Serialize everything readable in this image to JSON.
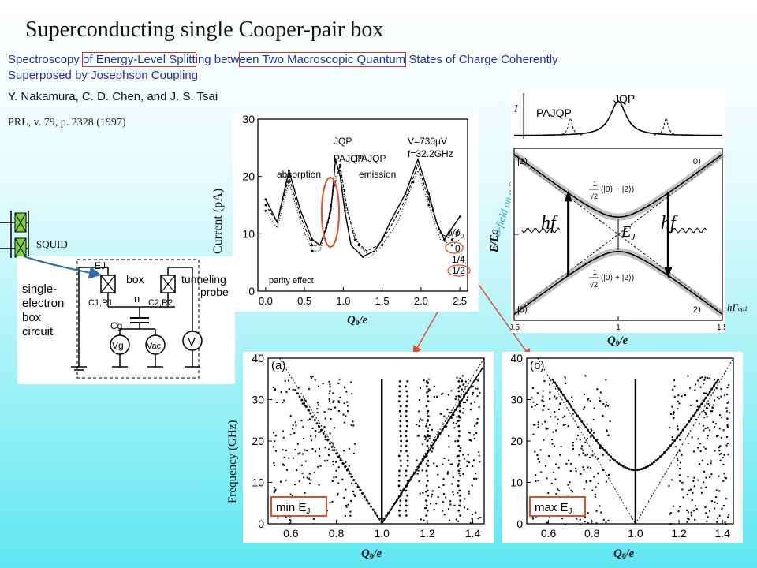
{
  "slide": {
    "title": "Superconducting single Cooper-pair box",
    "subtitle": {
      "p1": "Spectroscopy ",
      "p2": "of Energy-Level Splitt",
      "p3": "ing betw",
      "p4": "een Two Macroscopic Quantum",
      "p5": " States of Charge Coherently",
      "line2": "Superposed by Josephson Coupling"
    },
    "authors": "Y. Nakamura, C. D. Chen, and J. S. Tsai",
    "reference": "PRL, v. 79, p. 2328 (1997)"
  },
  "circuit": {
    "squid_label": "SQUID",
    "ej_label": "EJ",
    "box_label": "box",
    "n_label": "n",
    "c1_label": "C1,R1",
    "c2_label": "C2,R2",
    "cg_label": "Cg",
    "vg_label": "Vg",
    "vac_label": "Vac",
    "v_label": "V",
    "tunneling_label": "tunneling",
    "probe_label": "probe",
    "circuit_desc": [
      "single-",
      "electron",
      "box",
      "circuit"
    ]
  },
  "current_plot": {
    "ylabel": "Current (pA)",
    "xlabel": "Q",
    "xlabel_sub": "0",
    "xlabel_tail": "/e",
    "conditions": [
      "V=730µV",
      "f=32.2GHz"
    ],
    "annotations": {
      "pajqp_left": "PAJQP",
      "absorption": "absorption",
      "jqp": "JQP",
      "pajqp_right": "PAJQP",
      "emission": "emission",
      "parity": "parity effect",
      "phi": "ϕ/ϕ",
      "phi_sub": "0",
      "phi0": "0",
      "phi1": "1/4",
      "phi2": "1/2"
    }
  },
  "energy_plot": {
    "ylabel": "E/E",
    "ylabel_sub": "C",
    "current_axis": "I",
    "jqp": "JQP",
    "pajqp": "PAJQP",
    "bfield": "B-field on a SQUID",
    "state2_left": "|2⟩",
    "state0_right": "|0⟩",
    "state0_left": "|0⟩",
    "state2_right": "|2⟩",
    "hf_left": "hf",
    "hf_right": "hf",
    "ej": "E",
    "ej_sub": "J",
    "minus_label": "(|0⟩ − |2⟩)",
    "plus_label": "(|0⟩ + |2⟩)",
    "frac_num": "1",
    "frac_den": "√2",
    "hbar_gamma": "ħΓ",
    "hbar_sub": "qp1",
    "xlabel": "Q",
    "xlabel_sub": "0",
    "xlabel_tail": "/e"
  },
  "freq_plots": {
    "ylabel": "Frequency (GHz)",
    "xlabel": "Q",
    "xlabel_sub": "0",
    "xlabel_tail": "/e",
    "panel_a": {
      "tag": "(a)",
      "box": "min E",
      "box_sub": "J"
    },
    "panel_b": {
      "tag": "(b)",
      "box": "max E",
      "box_sub": "J"
    }
  },
  "chart_data": [
    {
      "type": "line",
      "ylabel": "Current (pA)",
      "xlabel": "Q0/e",
      "ylim": [
        0,
        30
      ],
      "xlim": [
        -0.1,
        2.6
      ],
      "yticks": [
        0,
        10,
        20,
        30
      ],
      "xticks": [
        0.0,
        0.5,
        1.0,
        1.5,
        2.0,
        2.5
      ],
      "series": [
        {
          "name": "0",
          "x": [
            0.0,
            0.15,
            0.3,
            0.45,
            0.6,
            0.7,
            0.78,
            0.84,
            0.9,
            0.96,
            1.02,
            1.1,
            1.25,
            1.4,
            1.5,
            1.6,
            1.8,
            1.96,
            2.1,
            2.2,
            2.3,
            2.4,
            2.5
          ],
          "y": [
            16,
            12,
            21,
            14,
            9,
            8,
            11,
            14,
            23,
            20,
            14,
            8,
            6,
            7,
            9,
            12,
            17,
            23,
            17,
            12,
            9,
            11,
            13
          ]
        },
        {
          "name": "1/4",
          "x": [
            0.0,
            0.15,
            0.3,
            0.45,
            0.6,
            0.7,
            0.8,
            0.88,
            0.96,
            1.04,
            1.15,
            1.3,
            1.45,
            1.6,
            1.8,
            1.96,
            2.1,
            2.25,
            2.4,
            2.5
          ],
          "y": [
            15,
            12,
            20,
            13,
            8,
            8,
            12,
            18,
            22,
            15,
            9,
            7,
            8,
            11,
            16,
            22,
            16,
            10,
            9,
            10
          ]
        },
        {
          "name": "1/2",
          "x": [
            0.0,
            0.15,
            0.3,
            0.45,
            0.6,
            0.7,
            0.8,
            0.9,
            0.96,
            1.04,
            1.2,
            1.35,
            1.5,
            1.7,
            1.9,
            1.96,
            2.1,
            2.25,
            2.4,
            2.5
          ],
          "y": [
            14,
            11,
            19,
            12,
            7,
            7,
            12,
            20,
            21,
            14,
            8,
            6,
            8,
            12,
            19,
            21,
            15,
            9,
            8,
            9
          ]
        }
      ]
    },
    {
      "type": "line",
      "ylabel": "E/EC",
      "xlabel": "Q0/e",
      "xlim": [
        0.5,
        1.5
      ],
      "ylim": [
        -1.1,
        1.1
      ],
      "xticks": [
        0.5,
        1,
        1.5
      ],
      "yticks": [
        -1,
        0,
        1
      ]
    },
    {
      "type": "scatter",
      "title": "(a)",
      "ylabel": "Frequency (GHz)",
      "xlabel": "Q0/e",
      "xlim": [
        0.5,
        1.45
      ],
      "ylim": [
        0,
        40
      ],
      "xticks": [
        0.6,
        0.8,
        1.0,
        1.2,
        1.4
      ],
      "yticks": [
        0,
        10,
        20,
        30,
        40
      ]
    },
    {
      "type": "scatter",
      "title": "(b)",
      "xlabel": "Q0/e",
      "xlim": [
        0.5,
        1.45
      ],
      "ylim": [
        0,
        40
      ],
      "xticks": [
        0.6,
        0.8,
        1.0,
        1.2,
        1.4
      ],
      "yticks": [
        0,
        10,
        20,
        30,
        40
      ]
    }
  ]
}
